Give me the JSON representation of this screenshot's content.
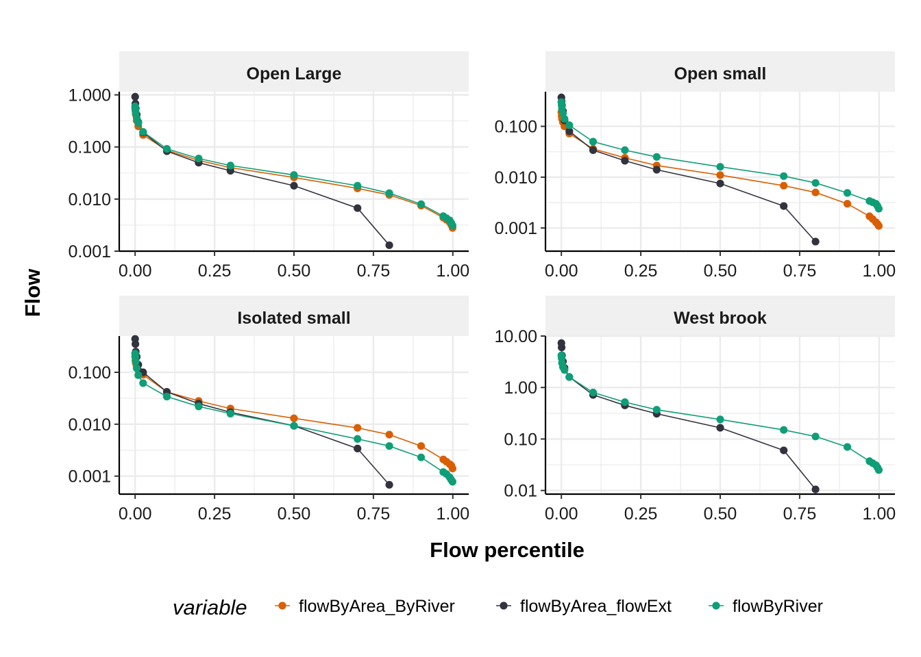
{
  "chart_data": {
    "type": "line",
    "xlabel": "Flow percentile",
    "ylabel": "Flow",
    "y_scale": "log10",
    "x_ticks": [
      "0.00",
      "0.25",
      "0.50",
      "0.75",
      "1.00"
    ],
    "grid": true,
    "legend": {
      "title": "variable",
      "placement": "bottom",
      "entries": [
        "flowByArea_ByRiver",
        "flowByArea_flowExt",
        "flowByRiver"
      ]
    },
    "colors": {
      "flowByArea_ByRiver": "#D95F02",
      "flowByArea_flowExt": "#33333F",
      "flowByRiver": "#0F9E77",
      "strip_bg": "#F0F0F0",
      "grid": "#EBEBEB"
    },
    "panels": [
      {
        "title": "Open Large",
        "y_tick_values": [
          0.001,
          0.01,
          0.1,
          1
        ],
        "y_tick_labels": [
          "0.001",
          "0.010",
          "0.100",
          "1.000"
        ],
        "ylim": [
          0.001,
          1.15
        ],
        "series": [
          {
            "name": "flowByArea_ByRiver",
            "x": [
              0,
              0.001,
              0.002,
              0.005,
              0.01,
              0.025,
              0.1,
              0.2,
              0.3,
              0.5,
              0.7,
              0.8,
              0.9,
              0.97,
              0.98,
              0.99,
              0.995,
              0.999
            ],
            "y": [
              0.56,
              0.5,
              0.42,
              0.32,
              0.25,
              0.17,
              0.086,
              0.055,
              0.04,
              0.026,
              0.016,
              0.012,
              0.0075,
              0.0044,
              0.004,
              0.0036,
              0.0032,
              0.0028
            ]
          },
          {
            "name": "flowByArea_flowExt",
            "x": [
              0,
              0.001,
              0.002,
              0.005,
              0.01,
              0.025,
              0.1,
              0.2,
              0.3,
              0.5,
              0.7,
              0.8
            ],
            "y": [
              0.92,
              0.68,
              0.55,
              0.42,
              0.3,
              0.19,
              0.083,
              0.05,
              0.035,
              0.018,
              0.0067,
              0.0013
            ]
          },
          {
            "name": "flowByRiver",
            "x": [
              0,
              0.001,
              0.002,
              0.005,
              0.01,
              0.025,
              0.1,
              0.2,
              0.3,
              0.5,
              0.7,
              0.8,
              0.9,
              0.97,
              0.98,
              0.99,
              0.995,
              0.999
            ],
            "y": [
              0.6,
              0.52,
              0.45,
              0.36,
              0.29,
              0.195,
              0.092,
              0.06,
              0.044,
              0.029,
              0.018,
              0.013,
              0.008,
              0.0047,
              0.0043,
              0.0039,
              0.0035,
              0.0031
            ]
          }
        ]
      },
      {
        "title": "Open small",
        "y_tick_values": [
          0.001,
          0.01,
          0.1
        ],
        "y_tick_labels": [
          "0.001",
          "0.010",
          "0.100"
        ],
        "ylim": [
          0.00035,
          0.48
        ],
        "series": [
          {
            "name": "flowByArea_ByRiver",
            "x": [
              0,
              0.001,
              0.002,
              0.005,
              0.01,
              0.025,
              0.1,
              0.2,
              0.3,
              0.5,
              0.7,
              0.8,
              0.9,
              0.97,
              0.98,
              0.99,
              0.995,
              0.999
            ],
            "y": [
              0.19,
              0.16,
              0.14,
              0.12,
              0.1,
              0.072,
              0.036,
              0.024,
              0.017,
              0.011,
              0.0068,
              0.005,
              0.003,
              0.0017,
              0.0015,
              0.0013,
              0.0012,
              0.0011
            ]
          },
          {
            "name": "flowByArea_flowExt",
            "x": [
              0,
              0.001,
              0.002,
              0.005,
              0.01,
              0.025,
              0.1,
              0.2,
              0.3,
              0.5,
              0.7,
              0.8
            ],
            "y": [
              0.37,
              0.31,
              0.26,
              0.2,
              0.13,
              0.08,
              0.034,
              0.021,
              0.014,
              0.0075,
              0.0027,
              0.00054
            ]
          },
          {
            "name": "flowByRiver",
            "x": [
              0,
              0.001,
              0.002,
              0.005,
              0.01,
              0.025,
              0.1,
              0.2,
              0.3,
              0.5,
              0.7,
              0.8,
              0.9,
              0.97,
              0.98,
              0.99,
              0.995,
              0.999
            ],
            "y": [
              0.3,
              0.26,
              0.22,
              0.18,
              0.14,
              0.105,
              0.05,
              0.034,
              0.025,
              0.016,
              0.0105,
              0.0077,
              0.0049,
              0.0034,
              0.0032,
              0.003,
              0.0027,
              0.0024
            ]
          }
        ]
      },
      {
        "title": "Isolated small",
        "y_tick_values": [
          0.001,
          0.01,
          0.1
        ],
        "y_tick_labels": [
          "0.001",
          "0.010",
          "0.100"
        ],
        "ylim": [
          0.00045,
          0.5
        ],
        "series": [
          {
            "name": "flowByArea_ByRiver",
            "x": [
              0,
              0.001,
              0.002,
              0.005,
              0.01,
              0.025,
              0.1,
              0.2,
              0.3,
              0.5,
              0.7,
              0.8,
              0.9,
              0.97,
              0.98,
              0.99,
              0.995,
              0.999
            ],
            "y": [
              0.2,
              0.17,
              0.15,
              0.13,
              0.11,
              0.09,
              0.042,
              0.028,
              0.02,
              0.013,
              0.0085,
              0.0063,
              0.0038,
              0.0021,
              0.0019,
              0.0017,
              0.0016,
              0.0014
            ]
          },
          {
            "name": "flowByArea_flowExt",
            "x": [
              0,
              0.001,
              0.002,
              0.005,
              0.01,
              0.025,
              0.1,
              0.2,
              0.3,
              0.5,
              0.7,
              0.8
            ],
            "y": [
              0.44,
              0.35,
              0.25,
              0.2,
              0.14,
              0.1,
              0.042,
              0.025,
              0.017,
              0.0093,
              0.0034,
              0.00068
            ]
          },
          {
            "name": "flowByRiver",
            "x": [
              0,
              0.001,
              0.002,
              0.005,
              0.01,
              0.025,
              0.1,
              0.2,
              0.3,
              0.5,
              0.7,
              0.8,
              0.9,
              0.97,
              0.98,
              0.99,
              0.995,
              0.999
            ],
            "y": [
              0.23,
              0.2,
              0.16,
              0.12,
              0.088,
              0.062,
              0.034,
              0.022,
              0.016,
              0.0093,
              0.0052,
              0.0038,
              0.0023,
              0.0012,
              0.0011,
              0.00095,
              0.00085,
              0.00078
            ]
          }
        ]
      },
      {
        "title": "West brook",
        "y_tick_values": [
          0.01,
          0.1,
          1,
          10
        ],
        "y_tick_labels": [
          "0.01",
          "0.10",
          "1.00",
          "10.00"
        ],
        "ylim": [
          0.0085,
          10
        ],
        "series": [
          {
            "name": "flowByArea_ByRiver",
            "x": [],
            "y": []
          },
          {
            "name": "flowByArea_flowExt",
            "x": [
              0,
              0.001,
              0.002,
              0.005,
              0.01,
              0.025,
              0.1,
              0.2,
              0.3,
              0.5,
              0.7,
              0.8
            ],
            "y": [
              7.3,
              6.0,
              4.2,
              3.2,
              2.4,
              1.6,
              0.72,
              0.45,
              0.31,
              0.165,
              0.06,
              0.0105
            ]
          },
          {
            "name": "flowByRiver",
            "x": [
              0,
              0.001,
              0.002,
              0.005,
              0.01,
              0.025,
              0.1,
              0.2,
              0.3,
              0.5,
              0.7,
              0.8,
              0.9,
              0.97,
              0.98,
              0.99,
              0.995,
              0.999
            ],
            "y": [
              4.2,
              3.7,
              3.0,
              2.5,
              2.2,
              1.6,
              0.8,
              0.52,
              0.37,
              0.24,
              0.15,
              0.112,
              0.07,
              0.037,
              0.034,
              0.031,
              0.028,
              0.025
            ]
          }
        ]
      }
    ]
  }
}
